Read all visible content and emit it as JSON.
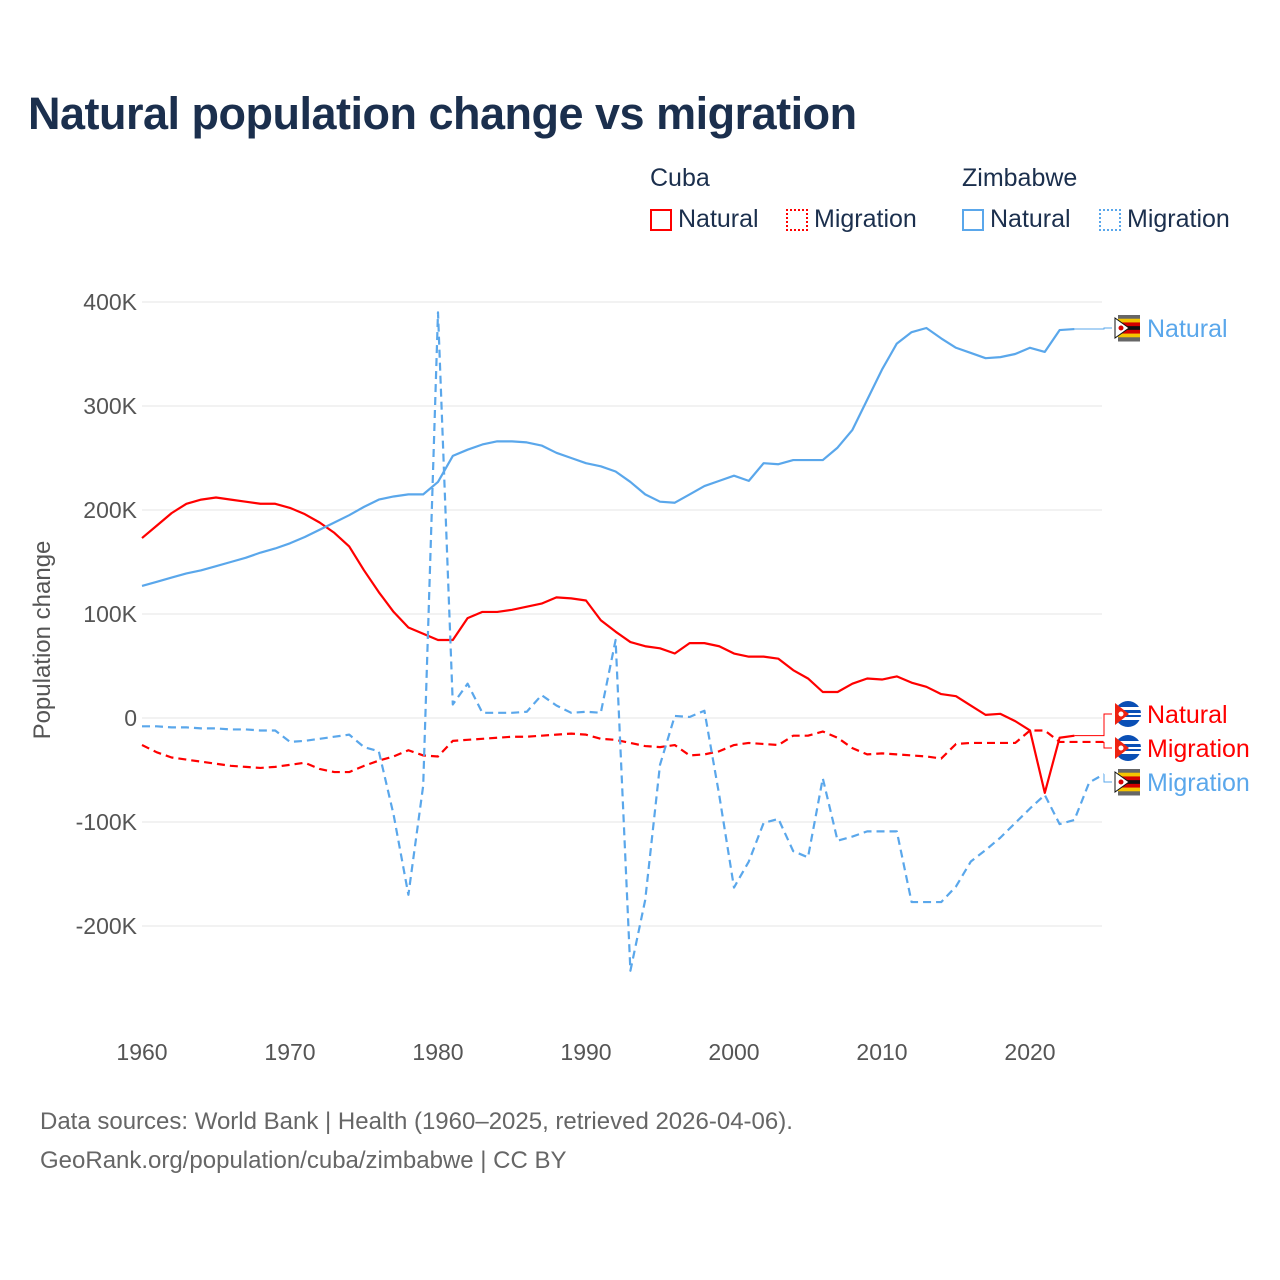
{
  "title": "Natural population change vs migration",
  "legend": {
    "groups": [
      {
        "name": "Cuba",
        "items": [
          {
            "label": "Natural",
            "style": "solid"
          },
          {
            "label": "Migration",
            "style": "dotted"
          }
        ],
        "color": "#ff0000"
      },
      {
        "name": "Zimbabwe",
        "items": [
          {
            "label": "Natural",
            "style": "solid"
          },
          {
            "label": "Migration",
            "style": "dotted"
          }
        ],
        "color": "#5aa7eb"
      }
    ]
  },
  "footer": {
    "line1": "Data sources: World Bank | Health (1960–2025, retrieved 2026-04-06).",
    "line2": "GeoRank.org/population/cuba/zimbabwe | CC BY"
  },
  "chart_data": {
    "type": "line",
    "title": "Natural population change vs migration",
    "xlabel": "",
    "ylabel": "Population change",
    "xlim": [
      1960,
      2025
    ],
    "ylim": [
      -250000,
      400000
    ],
    "x_ticks": [
      1960,
      1970,
      1980,
      1990,
      2000,
      2010,
      2020
    ],
    "x_tick_labels": [
      "1960",
      "1970",
      "1980",
      "1990",
      "2000",
      "2010",
      "2020"
    ],
    "y_ticks": [
      -200000,
      -100000,
      0,
      100000,
      200000,
      300000,
      400000
    ],
    "y_tick_labels": [
      "-200K",
      "-100K",
      "0",
      "100K",
      "200K",
      "300K",
      "400K"
    ],
    "grid": true,
    "legend_position": "top-right",
    "x_start": 1960,
    "series": [
      {
        "name": "Cuba Natural",
        "end_label": "Natural",
        "country": "Cuba",
        "color": "#ff0000",
        "dash": false,
        "values": [
          173,
          185,
          197,
          206,
          210,
          212,
          210,
          208,
          206,
          206,
          202,
          196,
          188,
          178,
          165,
          142,
          121,
          102,
          87,
          81,
          75,
          75,
          96,
          102,
          102,
          104,
          107,
          110,
          116,
          115,
          113,
          94,
          83,
          73,
          69,
          67,
          62,
          72,
          72,
          69,
          62,
          59,
          59,
          57,
          46,
          38,
          25,
          25,
          33,
          38,
          37,
          40,
          34,
          30,
          23,
          21,
          12,
          3,
          4,
          -3,
          -12,
          -72,
          -19,
          -17
        ]
      },
      {
        "name": "Cuba Migration",
        "end_label": "Migration",
        "country": "Cuba",
        "color": "#ff0000",
        "dash": true,
        "values": [
          -26,
          -33,
          -38,
          -40,
          -42,
          -44,
          -46,
          -47,
          -48,
          -47,
          -45,
          -43,
          -49,
          -52,
          -52,
          -46,
          -41,
          -37,
          -31,
          -36,
          -37,
          -22,
          -21,
          -20,
          -19,
          -18,
          -18,
          -17,
          -16,
          -15,
          -16,
          -20,
          -21,
          -24,
          -27,
          -28,
          -26,
          -36,
          -35,
          -32,
          -26,
          -24,
          -25,
          -26,
          -17,
          -17,
          -13,
          -19,
          -29,
          -35,
          -34,
          -35,
          -36,
          -37,
          -39,
          -25,
          -24,
          -24,
          -24,
          -24,
          -12,
          -12,
          -23,
          -23,
          -23,
          -23
        ]
      },
      {
        "name": "Zimbabwe Natural",
        "end_label": "Natural",
        "country": "Zimbabwe",
        "color": "#5aa7eb",
        "dash": false,
        "values": [
          127,
          131,
          135,
          139,
          142,
          146,
          150,
          154,
          159,
          163,
          168,
          174,
          181,
          188,
          195,
          203,
          210,
          213,
          215,
          215,
          227,
          252,
          258,
          263,
          266,
          266,
          265,
          262,
          255,
          250,
          245,
          242,
          237,
          227,
          215,
          208,
          207,
          215,
          223,
          228,
          233,
          228,
          245,
          244,
          248,
          248,
          248,
          260,
          277,
          306,
          335,
          360,
          371,
          375,
          365,
          356,
          351,
          346,
          347,
          350,
          356,
          352,
          373,
          374
        ]
      },
      {
        "name": "Zimbabwe Migration",
        "end_label": "Migration",
        "country": "Zimbabwe",
        "color": "#5aa7eb",
        "dash": true,
        "values": [
          -8,
          -8,
          -9,
          -9,
          -10,
          -10,
          -11,
          -11,
          -12,
          -12,
          -23,
          -22,
          -20,
          -18,
          -16,
          -28,
          -32,
          -93,
          -170,
          -65,
          390,
          13,
          33,
          5,
          5,
          5,
          6,
          22,
          12,
          5,
          6,
          5,
          75,
          -243,
          -175,
          -45,
          2,
          1,
          7,
          -74,
          -163,
          -138,
          -101,
          -97,
          -128,
          -134,
          -58,
          -118,
          -114,
          -109,
          -109,
          -109,
          -177,
          -177,
          -177,
          -162,
          -138,
          -127,
          -115,
          -101,
          -87,
          -74,
          -102,
          -98,
          -62,
          -54
        ]
      }
    ],
    "value_unit": "thousands"
  }
}
